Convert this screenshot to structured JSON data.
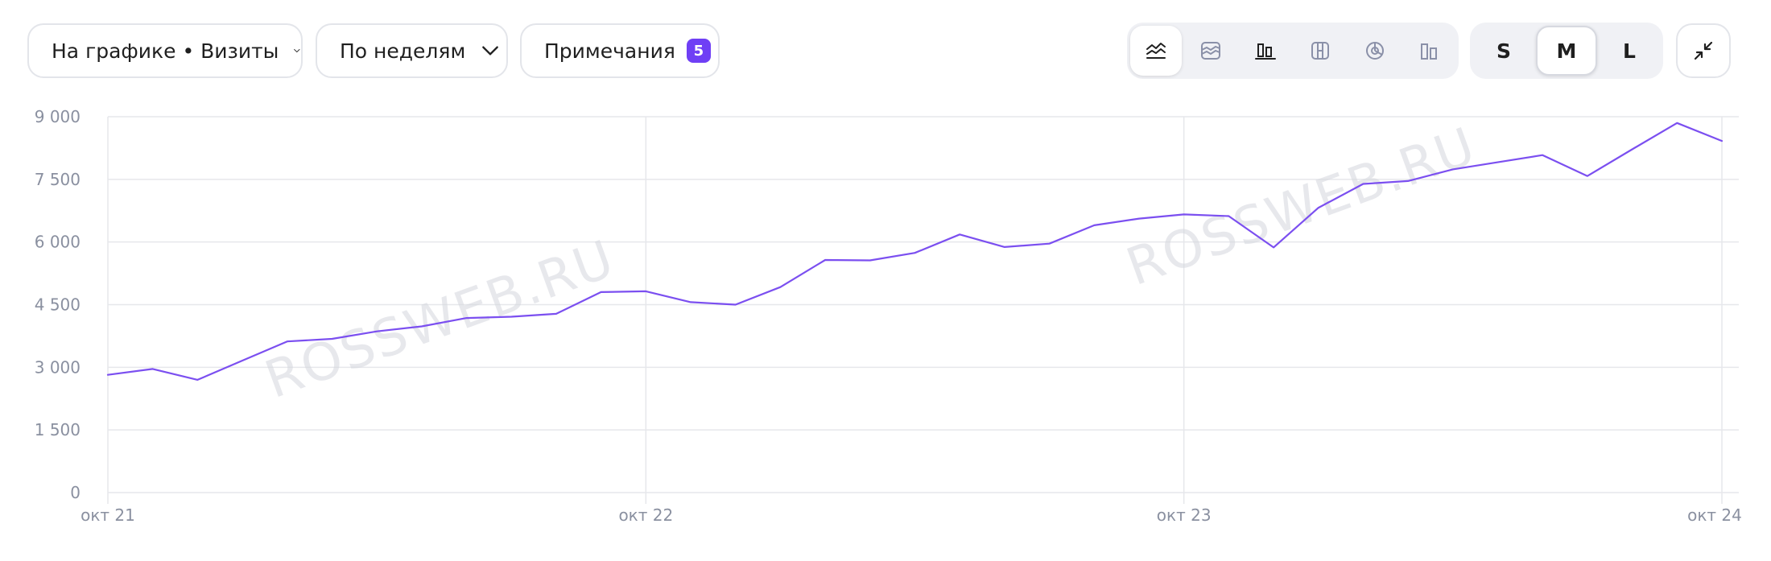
{
  "toolbar": {
    "metric_label": "На графике • Визиты",
    "period_label": "По неделям",
    "notes_label": "Примечания",
    "notes_count": "5",
    "chart_types": [
      {
        "name": "line-chart-icon",
        "active": true
      },
      {
        "name": "area-chart-icon",
        "active": false
      },
      {
        "name": "bar-chart-icon",
        "active": false
      },
      {
        "name": "stacked-chart-icon",
        "active": false
      },
      {
        "name": "pie-chart-icon",
        "active": false
      },
      {
        "name": "column-chart-icon",
        "active": false
      }
    ],
    "sizes": [
      {
        "label": "S",
        "active": false
      },
      {
        "label": "M",
        "active": true
      },
      {
        "label": "L",
        "active": false
      }
    ],
    "collapse_icon": "collapse-icon"
  },
  "colors": {
    "line": "#7b4ff0",
    "badge": "#6f3ff5",
    "grid": "#e6e7eb",
    "axis_text": "#8a90a0"
  },
  "watermarks": [
    "ROSSWEB.RU",
    "ROSSWEB.RU"
  ],
  "chart_data": {
    "type": "line",
    "title": "",
    "xlabel": "",
    "ylabel": "",
    "ylim": [
      0,
      9000
    ],
    "y_ticks": [
      {
        "value": 0,
        "label": "0"
      },
      {
        "value": 1500,
        "label": "1 500"
      },
      {
        "value": 3000,
        "label": "3 000"
      },
      {
        "value": 4500,
        "label": "4 500"
      },
      {
        "value": 6000,
        "label": "6 000"
      },
      {
        "value": 7500,
        "label": "7 500"
      },
      {
        "value": 9000,
        "label": "9 000"
      }
    ],
    "x_ticks": [
      {
        "index": 0,
        "label": "окт 21"
      },
      {
        "index": 12,
        "label": "окт 22"
      },
      {
        "index": 24,
        "label": "окт 23"
      },
      {
        "index": 36,
        "label": "окт 24"
      }
    ],
    "grid": true,
    "legend": "none",
    "series": [
      {
        "values": [
          2820,
          2960,
          2700,
          3160,
          3620,
          3680,
          3860,
          3980,
          4180,
          4210,
          4280,
          4800,
          4820,
          4560,
          4500,
          4920,
          5570,
          5560,
          5740,
          6180,
          5880,
          5960,
          6400,
          6560,
          6660,
          6620,
          5870,
          6820,
          7390,
          7460,
          7740,
          7910,
          8080,
          7580,
          8220,
          8850,
          8420
        ]
      }
    ]
  }
}
